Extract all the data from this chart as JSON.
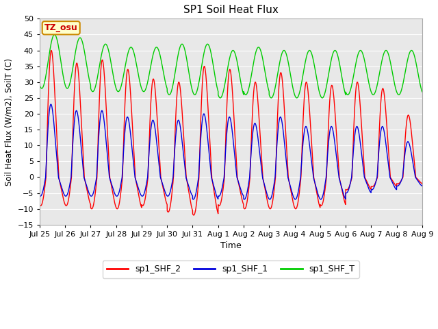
{
  "title": "SP1 Soil Heat Flux",
  "xlabel": "Time",
  "ylabel": "Soil Heat Flux (W/m2), SoilT (C)",
  "ylim": [
    -15,
    50
  ],
  "yticks": [
    -15,
    -10,
    -5,
    0,
    5,
    10,
    15,
    20,
    25,
    30,
    35,
    40,
    45,
    50
  ],
  "color_shf2": "#ff0000",
  "color_shf1": "#0000dd",
  "color_shft": "#00cc00",
  "bg_color": "#e8e8e8",
  "plot_bg": "#e8e8e8",
  "annotation_text": "TZ_osu",
  "annotation_bg": "#ffffcc",
  "annotation_border": "#cc8800",
  "annotation_text_color": "#cc0000",
  "legend_labels": [
    "sp1_SHF_2",
    "sp1_SHF_1",
    "sp1_SHF_T"
  ],
  "tick_labels": [
    "Jul 25",
    "Jul 26",
    "Jul 27",
    "Jul 28",
    "Jul 29",
    "Jul 30",
    "Jul 31",
    "Aug 1",
    "Aug 2",
    "Aug 3",
    "Aug 4",
    "Aug 5",
    "Aug 6",
    "Aug 7",
    "Aug 8",
    "Aug 9"
  ],
  "shf2_peak_values": [
    40,
    36,
    37,
    34,
    31,
    30,
    35,
    34,
    30,
    33,
    30,
    29,
    30,
    28
  ],
  "shf2_trough_values": [
    -9,
    -9,
    -10,
    -10,
    -9,
    -11,
    -12,
    -9,
    -10,
    -10,
    -10,
    -9,
    -4,
    -3
  ],
  "shf1_peak_values": [
    23,
    21,
    21,
    19,
    18,
    18,
    20,
    19,
    17,
    19,
    16,
    16,
    16,
    16
  ],
  "shf1_trough_values": [
    -6,
    -6,
    -6,
    -6,
    -6,
    -6,
    -7,
    -6,
    -7,
    -7,
    -7,
    -7,
    -5,
    -4
  ],
  "shft_max_values": [
    45,
    44,
    42,
    41,
    41,
    42,
    42,
    40,
    41,
    40,
    40,
    40,
    40
  ],
  "shft_min_values": [
    28,
    28,
    27,
    27,
    27,
    26,
    26,
    25,
    26,
    25,
    25,
    25,
    26
  ]
}
